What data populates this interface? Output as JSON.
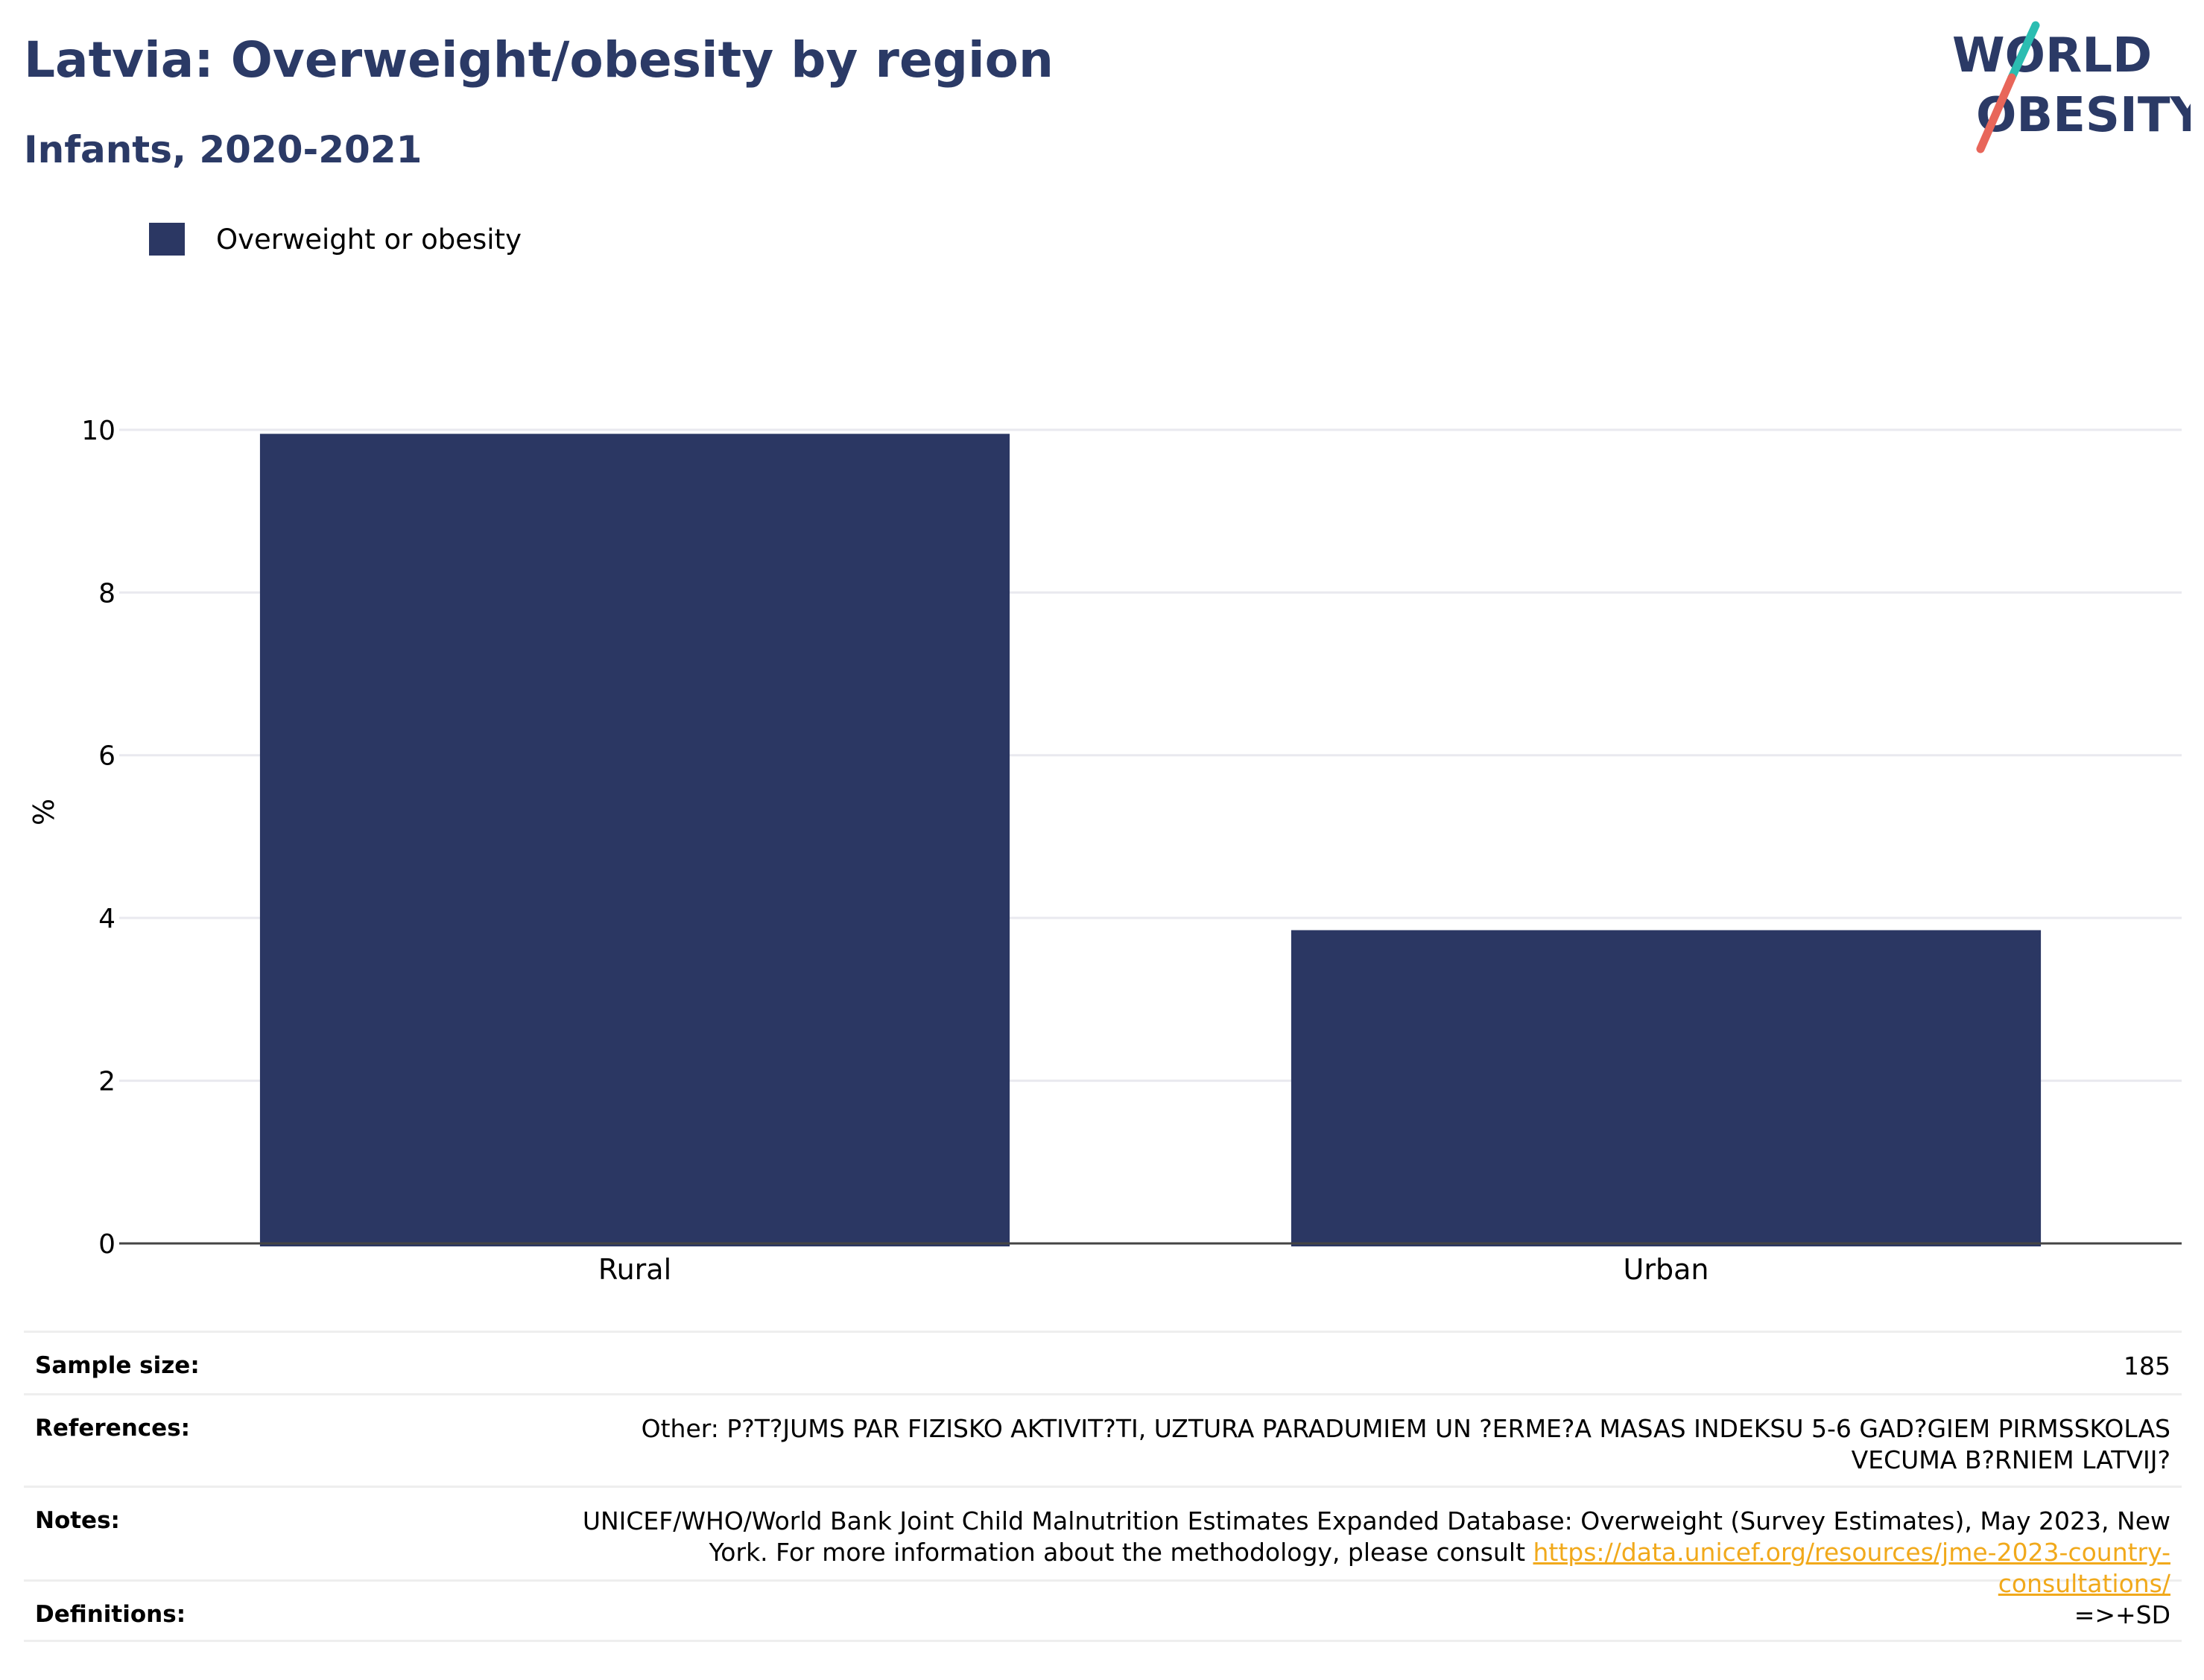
{
  "header": {
    "title": "Latvia: Overweight/obesity by region",
    "subtitle": "Infants, 2020-2021"
  },
  "logo": {
    "line1": "WORLD",
    "line2": "OBESITY",
    "slash_colors": [
      "#2bbdb1",
      "#e8665a"
    ]
  },
  "colors": {
    "bar": "#2b3763",
    "title": "#2b3a66",
    "grid": "#e9e9ef",
    "axis": "#444444",
    "link": "#f1a91b"
  },
  "chart_data": {
    "type": "bar",
    "categories": [
      "Rural",
      "Urban"
    ],
    "series": [
      {
        "name": "Overweight or obesity",
        "values": [
          9.95,
          3.85
        ]
      }
    ],
    "ylabel": "%",
    "xlabel": "",
    "ylim": [
      0,
      10.2
    ],
    "yticks": [
      0,
      2,
      4,
      6,
      8,
      10
    ],
    "grid": true,
    "legend": "top-left"
  },
  "footer": {
    "rows": [
      {
        "label": "Sample size:",
        "value": "185"
      },
      {
        "label": "References:",
        "value": "Other: P?T?JUMS PAR FIZISKO AKTIVIT?TI, UZTURA PARADUMIEM UN ?ERME?A MASAS INDEKSU 5-6 GAD?GIEM PIRMSSKOLAS VECUMA B?RNIEM LATVIJ?"
      },
      {
        "label": "Notes:",
        "value": "UNICEF/WHO/World Bank Joint Child Malnutrition Estimates Expanded Database: Overweight (Survey Estimates), May 2023, New York. For more information about the methodology, please consult ",
        "link": "https://data.unicef.org/resources/jme-2023-country-consultations/"
      },
      {
        "label": "Definitions:",
        "value": "=>+SD"
      }
    ]
  }
}
